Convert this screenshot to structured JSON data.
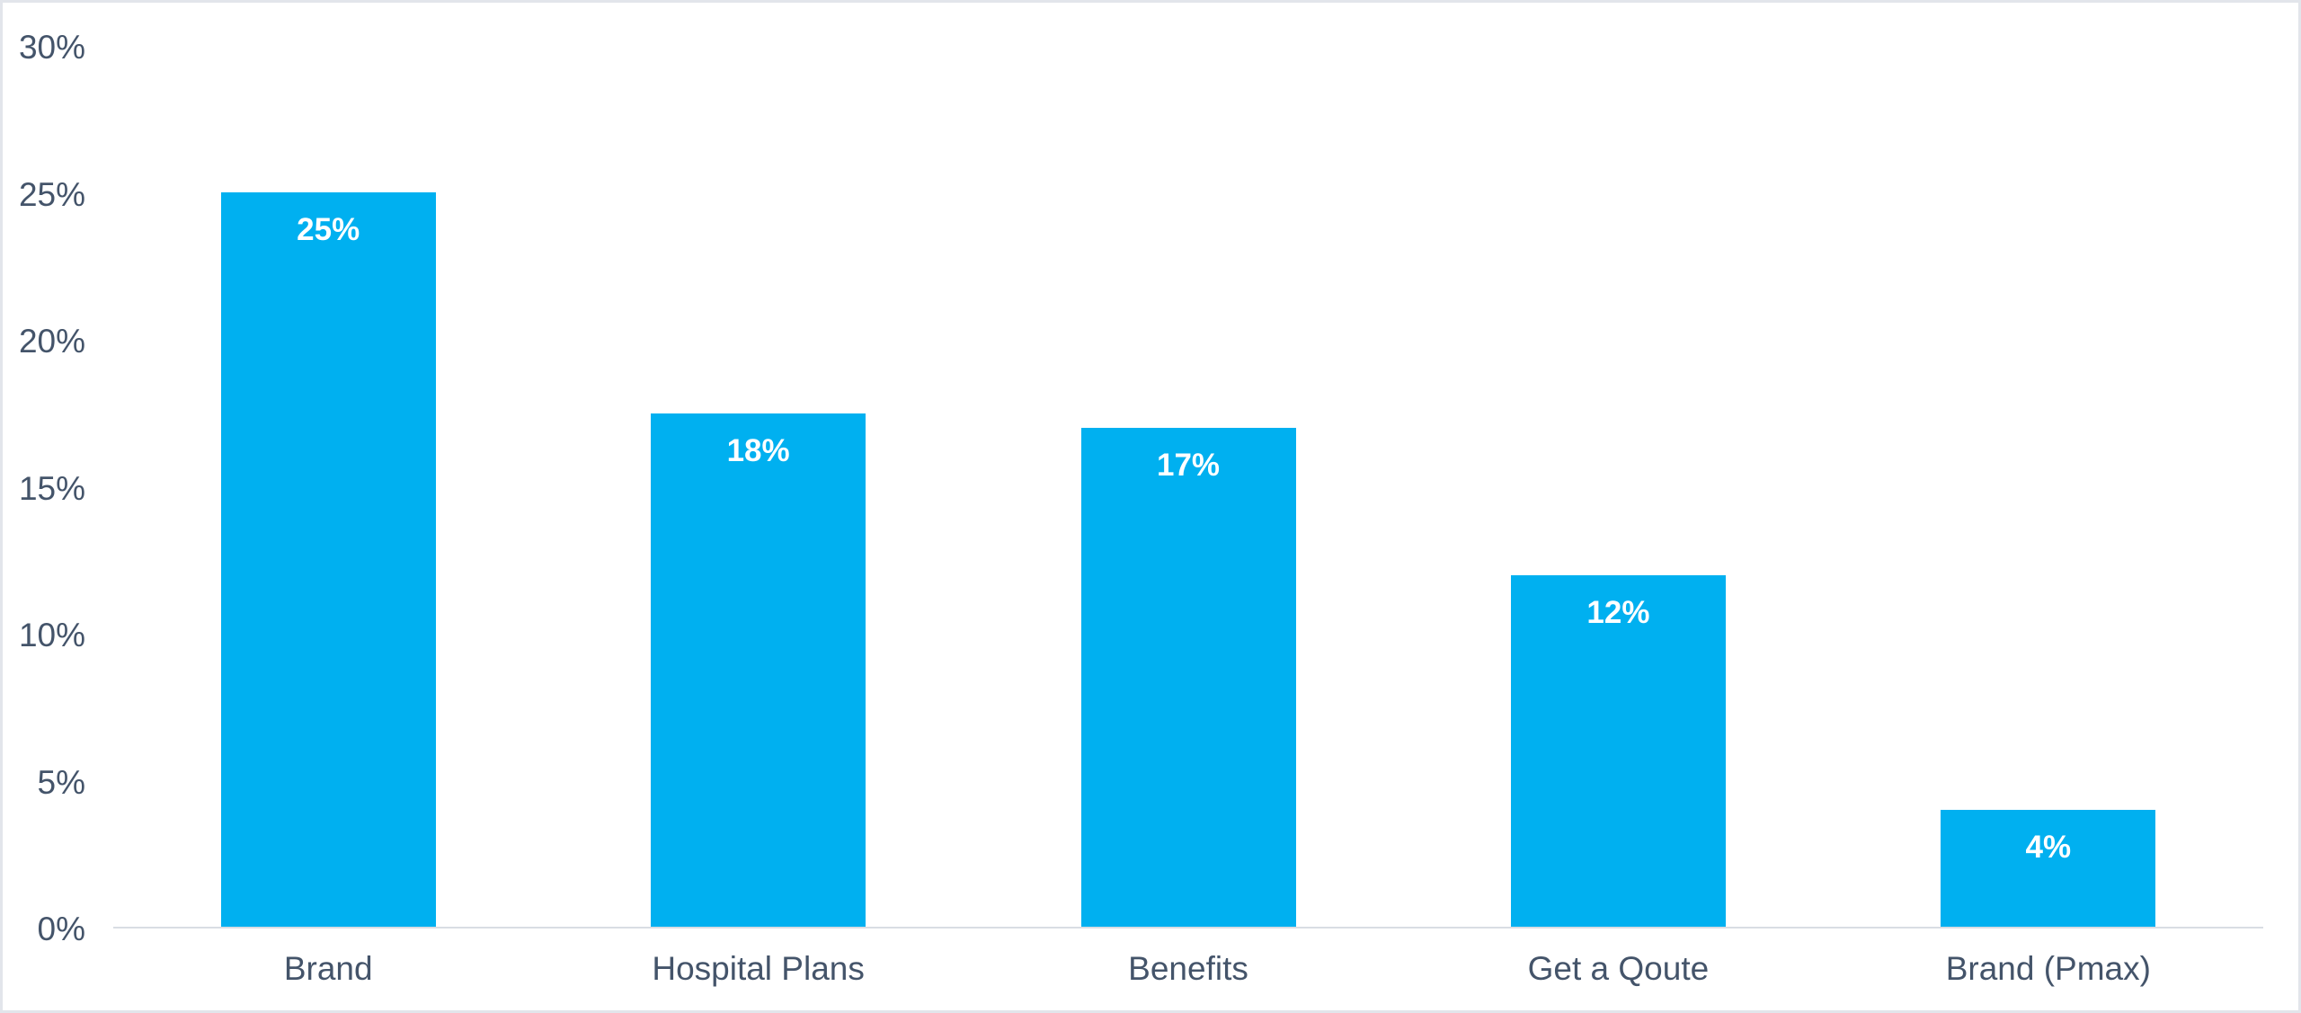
{
  "window": {
    "background": "#FFFFFF",
    "border_color": "#E2E5EB"
  },
  "chart_data": {
    "type": "bar",
    "title": "",
    "categories": [
      "Brand",
      "Hospital Plans",
      "Benefits",
      "Get a Qoute",
      "Brand (Pmax)"
    ],
    "values": [
      25,
      18,
      17,
      12,
      4
    ],
    "data_labels": [
      "25%",
      "18%",
      "17%",
      "12%",
      "4%"
    ],
    "display_heights_pct": [
      25,
      17.5,
      17,
      12,
      4
    ],
    "data_label_position": "inside-end",
    "xlabel": "",
    "ylabel": "",
    "y_axis": {
      "min": 0,
      "max": 30,
      "step": 5,
      "tick_labels": [
        "0%",
        "5%",
        "10%",
        "15%",
        "20%",
        "25%",
        "30%"
      ]
    },
    "grid": false,
    "legend": false,
    "colors": {
      "bar": "#00B0F0",
      "data_label_text": "#FFFFFF",
      "axis_text": "#44546A",
      "axis_line": "#D9DDE3"
    }
  }
}
